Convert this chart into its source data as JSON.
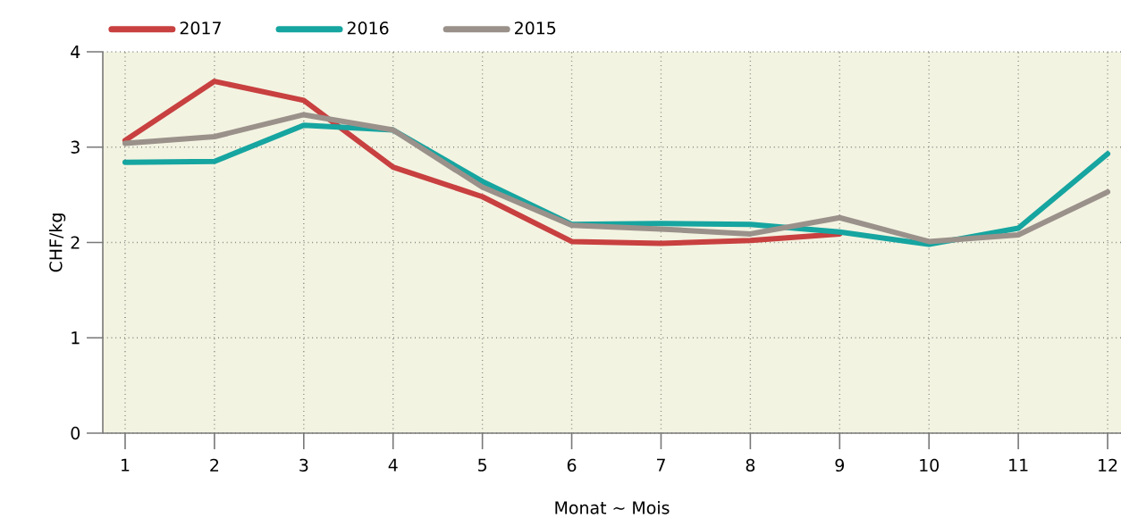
{
  "chart_data": {
    "type": "line",
    "xlabel": "Monat  ~  Mois",
    "ylabel": "CHF/kg",
    "x": [
      1,
      2,
      3,
      4,
      5,
      6,
      7,
      8,
      9,
      10,
      11,
      12
    ],
    "xlim": [
      0.75,
      12.15
    ],
    "ylim": [
      0,
      4
    ],
    "xticks": [
      1,
      2,
      3,
      4,
      5,
      6,
      7,
      8,
      9,
      10,
      11,
      12
    ],
    "yticks": [
      0,
      1,
      2,
      3,
      4
    ],
    "grid": true,
    "legend": "top left",
    "marker": "none",
    "line_style": "solid",
    "series": [
      {
        "name": "2017",
        "color": "#c84040",
        "values": [
          3.07,
          3.69,
          3.49,
          2.79,
          2.48,
          2.01,
          1.99,
          2.02,
          2.09,
          null,
          null,
          null
        ]
      },
      {
        "name": "2016",
        "color": "#16a5a0",
        "values": [
          2.84,
          2.85,
          3.23,
          3.18,
          2.64,
          2.19,
          2.2,
          2.19,
          2.11,
          1.98,
          2.15,
          2.93
        ]
      },
      {
        "name": "2015",
        "color": "#9a918b",
        "values": [
          3.04,
          3.11,
          3.34,
          3.18,
          2.58,
          2.18,
          2.14,
          2.09,
          2.26,
          2.01,
          2.08,
          2.53
        ]
      }
    ]
  }
}
